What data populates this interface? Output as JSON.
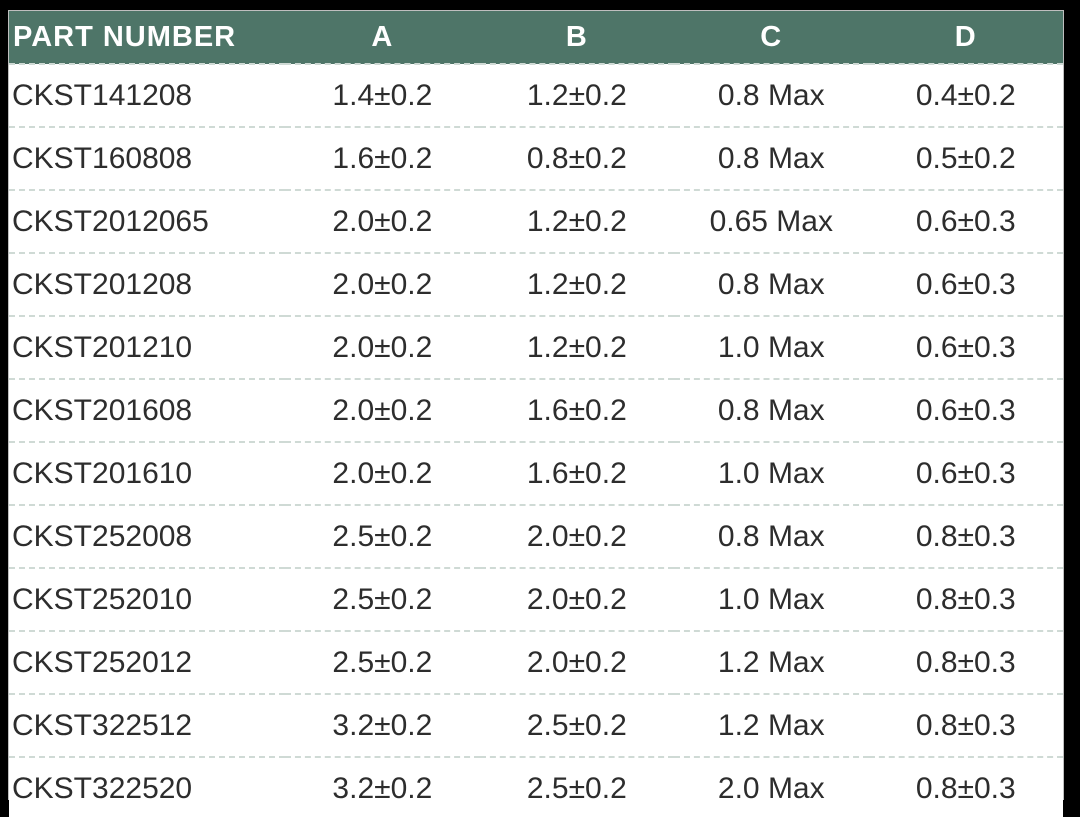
{
  "table": {
    "columns": [
      {
        "key": "part",
        "label": "PART NUMBER"
      },
      {
        "key": "a",
        "label": "A"
      },
      {
        "key": "b",
        "label": "B"
      },
      {
        "key": "c",
        "label": "C"
      },
      {
        "key": "d",
        "label": "D"
      }
    ],
    "rows": [
      {
        "part": "CKST141208",
        "a": "1.4±0.2",
        "b": "1.2±0.2",
        "c": "0.8 Max",
        "d": "0.4±0.2"
      },
      {
        "part": "CKST160808",
        "a": "1.6±0.2",
        "b": "0.8±0.2",
        "c": "0.8 Max",
        "d": "0.5±0.2"
      },
      {
        "part": "CKST2012065",
        "a": "2.0±0.2",
        "b": "1.2±0.2",
        "c": "0.65 Max",
        "d": "0.6±0.3"
      },
      {
        "part": "CKST201208",
        "a": "2.0±0.2",
        "b": "1.2±0.2",
        "c": "0.8 Max",
        "d": "0.6±0.3"
      },
      {
        "part": "CKST201210",
        "a": "2.0±0.2",
        "b": "1.2±0.2",
        "c": "1.0 Max",
        "d": "0.6±0.3"
      },
      {
        "part": "CKST201608",
        "a": "2.0±0.2",
        "b": "1.6±0.2",
        "c": "0.8 Max",
        "d": "0.6±0.3"
      },
      {
        "part": "CKST201610",
        "a": "2.0±0.2",
        "b": "1.6±0.2",
        "c": "1.0 Max",
        "d": "0.6±0.3"
      },
      {
        "part": "CKST252008",
        "a": "2.5±0.2",
        "b": "2.0±0.2",
        "c": "0.8 Max",
        "d": "0.8±0.3"
      },
      {
        "part": "CKST252010",
        "a": "2.5±0.2",
        "b": "2.0±0.2",
        "c": "1.0 Max",
        "d": "0.8±0.3"
      },
      {
        "part": "CKST252012",
        "a": "2.5±0.2",
        "b": "2.0±0.2",
        "c": "1.2 Max",
        "d": "0.8±0.3"
      },
      {
        "part": "CKST322512",
        "a": "3.2±0.2",
        "b": "2.5±0.2",
        "c": "1.2 Max",
        "d": "0.8±0.3"
      },
      {
        "part": "CKST322520",
        "a": "3.2±0.2",
        "b": "2.5±0.2",
        "c": "2.0 Max",
        "d": "0.8±0.3"
      }
    ]
  },
  "colors": {
    "header_background": "#4e7568",
    "header_text": "#ffffff",
    "body_text": "#2d2d2d",
    "row_divider": "#cfdad5",
    "row_background": "#ffffff",
    "frame": "#000000"
  }
}
